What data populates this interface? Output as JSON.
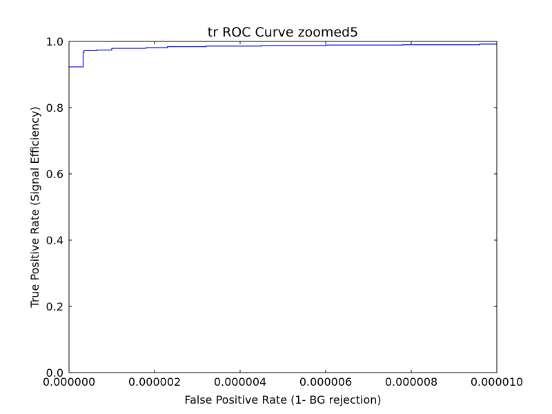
{
  "chart_data": {
    "type": "line",
    "title": "tr ROC Curve zoomed5",
    "xlabel": "False Positive Rate (1- BG rejection)",
    "ylabel": "True Positive Rate (Signal Efficiency)",
    "xlim": [
      0,
      1e-05
    ],
    "ylim": [
      0,
      1.0
    ],
    "x_ticks": [
      0,
      2e-06,
      4e-06,
      6e-06,
      8e-06,
      1e-05
    ],
    "x_tick_labels": [
      "0.000000",
      "0.000002",
      "0.000004",
      "0.000006",
      "0.000008",
      "0.000010"
    ],
    "y_ticks": [
      0,
      0.2,
      0.4,
      0.6,
      0.8,
      1.0
    ],
    "y_tick_labels": [
      "0.0",
      "0.2",
      "0.4",
      "0.6",
      "0.8",
      "1.0"
    ],
    "grid": false,
    "line_color": "#0000ff",
    "series": [
      {
        "x": [
          0,
          3.3e-07,
          3.3e-07,
          3.5e-07,
          3.5e-07,
          6.5e-07,
          6.5e-07,
          1e-06,
          1e-06,
          1.8e-06,
          1.8e-06,
          2.3e-06,
          2.3e-06,
          3.2e-06,
          3.2e-06,
          4.5e-06,
          4.5e-06,
          6e-06,
          6e-06,
          7.8e-06,
          7.8e-06,
          9.6e-06,
          9.6e-06,
          1e-05
        ],
        "y": [
          0.923,
          0.923,
          0.967,
          0.967,
          0.972,
          0.972,
          0.974,
          0.974,
          0.979,
          0.979,
          0.981,
          0.981,
          0.984,
          0.984,
          0.986,
          0.986,
          0.987,
          0.987,
          0.989,
          0.989,
          0.99,
          0.99,
          0.992,
          0.992
        ]
      }
    ]
  }
}
